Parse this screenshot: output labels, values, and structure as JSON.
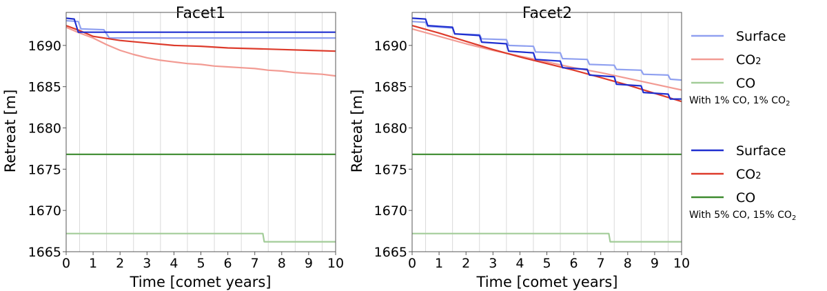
{
  "chart_data": [
    {
      "type": "line",
      "title": "Facet1",
      "xlabel": "Time [comet years]",
      "ylabel": "Retreat [m]",
      "xlim": [
        0,
        10
      ],
      "ylim": [
        1665,
        1694
      ],
      "xticks": [
        "0",
        "1",
        "2",
        "3",
        "4",
        "5",
        "6",
        "7",
        "8",
        "9",
        "10"
      ],
      "yticks": [
        "1665",
        "1670",
        "1675",
        "1680",
        "1685",
        "1690"
      ],
      "vertical_grid_at": [
        0.5,
        1.5,
        2.5,
        3.5,
        4.5,
        5.5,
        6.5,
        7.5,
        8.5,
        9.5
      ],
      "series": [
        {
          "key": "surface_1pct",
          "name": "Surface",
          "group": "With 1% CO, 1% CO2",
          "color": "#8fa0f0",
          "x": [
            0,
            0.45,
            0.55,
            1.4,
            1.6,
            10
          ],
          "y": [
            1693.0,
            1692.9,
            1692.0,
            1691.9,
            1690.9,
            1690.9
          ]
        },
        {
          "key": "co2_1pct",
          "name": "CO2",
          "group": "With 1% CO, 1% CO2",
          "color": "#f29a92",
          "x": [
            0,
            0.5,
            1.0,
            1.5,
            2.0,
            2.5,
            3.0,
            3.5,
            4.0,
            4.5,
            5.0,
            5.5,
            6.0,
            6.5,
            7.0,
            7.5,
            8.0,
            8.5,
            9.0,
            9.5,
            10
          ],
          "y": [
            1692.2,
            1691.5,
            1690.9,
            1690.1,
            1689.4,
            1688.9,
            1688.5,
            1688.2,
            1688.0,
            1687.8,
            1687.7,
            1687.5,
            1687.4,
            1687.3,
            1687.2,
            1687.0,
            1686.9,
            1686.7,
            1686.6,
            1686.5,
            1686.3
          ]
        },
        {
          "key": "co_1pct",
          "name": "CO",
          "group": "With 1% CO, 1% CO2",
          "color": "#a2cc98",
          "x": [
            0,
            7.3,
            7.35,
            10
          ],
          "y": [
            1667.2,
            1667.2,
            1666.2,
            1666.2
          ]
        },
        {
          "key": "surface_5pct",
          "name": "Surface",
          "group": "With 5% CO, 15% CO2",
          "color": "#1f2fd0",
          "x": [
            0,
            0.3,
            0.45,
            10
          ],
          "y": [
            1693.3,
            1693.2,
            1691.6,
            1691.6
          ]
        },
        {
          "key": "co2_5pct",
          "name": "CO2",
          "group": "With 5% CO, 15% CO2",
          "color": "#dd3a2a",
          "x": [
            0,
            0.5,
            1.0,
            2.0,
            3.0,
            4.0,
            5.0,
            6.0,
            7.0,
            8.0,
            9.0,
            10
          ],
          "y": [
            1692.4,
            1691.8,
            1691.1,
            1690.6,
            1690.3,
            1690.0,
            1689.9,
            1689.7,
            1689.6,
            1689.5,
            1689.4,
            1689.3
          ]
        },
        {
          "key": "co_5pct",
          "name": "CO",
          "group": "With 5% CO, 15% CO2",
          "color": "#3c8a2e",
          "x": [
            0,
            10
          ],
          "y": [
            1676.8,
            1676.8
          ]
        }
      ]
    },
    {
      "type": "line",
      "title": "Facet2",
      "xlabel": "Time [comet years]",
      "ylabel": "Retreat [m]",
      "xlim": [
        0,
        10
      ],
      "ylim": [
        1665,
        1694
      ],
      "xticks": [
        "0",
        "1",
        "2",
        "3",
        "4",
        "5",
        "6",
        "7",
        "8",
        "9",
        "10"
      ],
      "yticks": [
        "1665",
        "1670",
        "1675",
        "1680",
        "1685",
        "1690"
      ],
      "vertical_grid_at": [
        0.5,
        1.5,
        2.5,
        3.5,
        4.5,
        5.5,
        6.5,
        7.5,
        8.5,
        9.5
      ],
      "series": [
        {
          "key": "surface_1pct",
          "name": "Surface",
          "group": "With 1% CO, 1% CO2",
          "color": "#8fa0f0",
          "x": [
            0,
            0.5,
            0.58,
            1.5,
            1.58,
            2.5,
            2.58,
            3.5,
            3.58,
            4.5,
            4.58,
            5.5,
            5.58,
            6.5,
            6.58,
            7.5,
            7.58,
            8.5,
            8.58,
            9.5,
            9.58,
            10
          ],
          "y": [
            1692.9,
            1692.8,
            1692.3,
            1692.1,
            1691.4,
            1691.3,
            1690.8,
            1690.7,
            1690.0,
            1689.9,
            1689.2,
            1689.1,
            1688.4,
            1688.3,
            1687.7,
            1687.6,
            1687.1,
            1687.0,
            1686.5,
            1686.4,
            1685.9,
            1685.8
          ]
        },
        {
          "key": "co2_1pct",
          "name": "CO2",
          "group": "With 1% CO, 1% CO2",
          "color": "#f29a92",
          "x": [
            0,
            1,
            2,
            3,
            4,
            5,
            6,
            7,
            8,
            9,
            10
          ],
          "y": [
            1692.0,
            1691.1,
            1690.2,
            1689.4,
            1688.7,
            1688.0,
            1687.3,
            1686.7,
            1686.0,
            1685.3,
            1684.6
          ]
        },
        {
          "key": "co_1pct",
          "name": "CO",
          "group": "With 1% CO, 1% CO2",
          "color": "#a2cc98",
          "x": [
            0,
            7.3,
            7.35,
            10
          ],
          "y": [
            1667.2,
            1667.2,
            1666.2,
            1666.2
          ]
        },
        {
          "key": "surface_5pct",
          "name": "Surface",
          "group": "With 5% CO, 15% CO2",
          "color": "#1f2fd0",
          "x": [
            0,
            0.5,
            0.58,
            1.5,
            1.58,
            2.5,
            2.58,
            3.5,
            3.58,
            4.5,
            4.58,
            5.5,
            5.58,
            6.5,
            6.58,
            7.5,
            7.58,
            8.5,
            8.58,
            9.5,
            9.58,
            10
          ],
          "y": [
            1693.3,
            1693.2,
            1692.4,
            1692.2,
            1691.4,
            1691.2,
            1690.4,
            1690.2,
            1689.3,
            1689.1,
            1688.3,
            1688.1,
            1687.3,
            1687.1,
            1686.4,
            1686.2,
            1685.3,
            1685.1,
            1684.3,
            1684.1,
            1683.5,
            1683.5
          ]
        },
        {
          "key": "co2_5pct",
          "name": "CO2",
          "group": "With 5% CO, 15% CO2",
          "color": "#dd3a2a",
          "x": [
            0,
            1,
            2,
            3,
            4,
            5,
            6,
            7,
            8,
            9,
            10
          ],
          "y": [
            1692.4,
            1691.5,
            1690.5,
            1689.5,
            1688.6,
            1687.8,
            1687.0,
            1686.1,
            1685.2,
            1684.2,
            1683.2
          ]
        },
        {
          "key": "co_5pct",
          "name": "CO",
          "group": "With 5% CO, 15% CO2",
          "color": "#3c8a2e",
          "x": [
            0,
            10
          ],
          "y": [
            1676.8,
            1676.8
          ]
        }
      ]
    }
  ],
  "legend": {
    "placement": "right",
    "groups": [
      {
        "note": "With 1% CO, 1% CO",
        "note_sub": "2",
        "entries": [
          {
            "series_key": "surface_1pct",
            "label": "Surface",
            "sub": ""
          },
          {
            "series_key": "co2_1pct",
            "label": "CO",
            "sub": "2"
          },
          {
            "series_key": "co_1pct",
            "label": "CO",
            "sub": ""
          }
        ]
      },
      {
        "note": "With 5% CO, 15% CO",
        "note_sub": "2",
        "entries": [
          {
            "series_key": "surface_5pct",
            "label": "Surface",
            "sub": ""
          },
          {
            "series_key": "co2_5pct",
            "label": "CO",
            "sub": "2"
          },
          {
            "series_key": "co_5pct",
            "label": "CO",
            "sub": ""
          }
        ]
      }
    ]
  }
}
